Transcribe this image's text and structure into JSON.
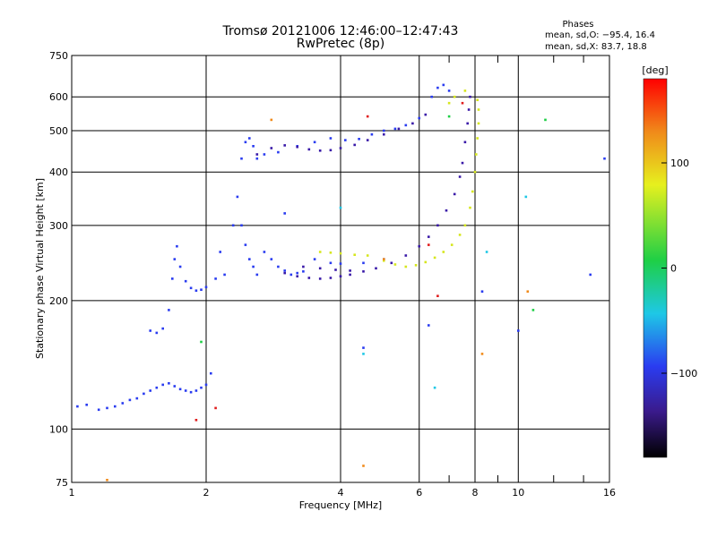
{
  "chart_data": {
    "type": "scatter",
    "title": "Tromsø 20121006 12:46:00–12:47:43",
    "subtitle": "RwPretec (8p)",
    "xlabel": "Frequency [MHz]",
    "ylabel": "Stationary phase Virtual Height [km]",
    "xscale": "log",
    "yscale": "log",
    "xlim": [
      1,
      16
    ],
    "ylim": [
      75,
      750
    ],
    "x_ticks": [
      1,
      2,
      4,
      6,
      8,
      10,
      16
    ],
    "x_tick_labels": [
      "1",
      "2",
      "4",
      "6",
      "8",
      "10",
      "16"
    ],
    "y_ticks": [
      75,
      100,
      200,
      300,
      400,
      500,
      600,
      750
    ],
    "y_tick_labels": [
      "75",
      "100",
      "200",
      "300",
      "400",
      "500",
      "600",
      "750"
    ],
    "grid": true,
    "phase_info": {
      "heading": "Phases",
      "line_o": "mean, sd,O: −95.4, 16.4",
      "line_x": "mean, sd,X: 83.7, 18.8"
    },
    "colorbar": {
      "label": "[deg]",
      "range": [
        -180,
        180
      ],
      "ticks": [
        100,
        0,
        -100
      ],
      "tick_labels": [
        "100",
        "0",
        "−100"
      ]
    },
    "series": [
      {
        "color": "#2a3cf0",
        "points": [
          [
            1.03,
            113
          ],
          [
            1.08,
            114
          ],
          [
            1.15,
            111
          ],
          [
            1.2,
            112
          ],
          [
            1.25,
            113
          ],
          [
            1.3,
            115
          ],
          [
            1.35,
            117
          ],
          [
            1.4,
            118
          ],
          [
            1.45,
            121
          ],
          [
            1.5,
            123
          ],
          [
            1.55,
            125
          ],
          [
            1.6,
            127
          ],
          [
            1.65,
            128
          ],
          [
            1.7,
            126
          ],
          [
            1.75,
            124
          ],
          [
            1.8,
            123
          ],
          [
            1.85,
            122
          ],
          [
            1.9,
            123
          ],
          [
            1.95,
            125
          ],
          [
            2.0,
            127
          ],
          [
            2.05,
            135
          ],
          [
            1.5,
            170
          ],
          [
            1.55,
            168
          ],
          [
            1.6,
            172
          ],
          [
            1.65,
            190
          ],
          [
            1.68,
            225
          ],
          [
            1.7,
            250
          ],
          [
            1.72,
            268
          ],
          [
            1.75,
            240
          ],
          [
            1.8,
            222
          ],
          [
            1.85,
            214
          ],
          [
            1.9,
            211
          ],
          [
            1.95,
            212
          ],
          [
            2.0,
            215
          ],
          [
            2.1,
            225
          ],
          [
            2.15,
            260
          ],
          [
            2.2,
            230
          ],
          [
            2.3,
            300
          ],
          [
            2.35,
            350
          ],
          [
            2.4,
            430
          ],
          [
            2.45,
            470
          ],
          [
            2.5,
            480
          ],
          [
            2.55,
            460
          ],
          [
            2.6,
            430
          ],
          [
            2.4,
            300
          ],
          [
            2.45,
            270
          ],
          [
            2.5,
            250
          ],
          [
            2.55,
            240
          ],
          [
            2.6,
            230
          ],
          [
            2.7,
            260
          ],
          [
            2.8,
            250
          ],
          [
            2.9,
            240
          ],
          [
            3.0,
            235
          ],
          [
            3.1,
            230
          ],
          [
            3.2,
            232
          ],
          [
            3.3,
            234
          ],
          [
            2.7,
            440
          ],
          [
            2.9,
            445
          ],
          [
            3.2,
            460
          ],
          [
            3.5,
            470
          ],
          [
            3.8,
            480
          ],
          [
            4.1,
            475
          ],
          [
            4.4,
            478
          ],
          [
            4.7,
            490
          ],
          [
            5.0,
            500
          ],
          [
            5.3,
            505
          ],
          [
            5.6,
            515
          ],
          [
            6.0,
            535
          ],
          [
            6.4,
            600
          ],
          [
            6.6,
            630
          ],
          [
            6.8,
            640
          ],
          [
            7.0,
            620
          ],
          [
            3.0,
            320
          ],
          [
            3.5,
            250
          ],
          [
            3.8,
            245
          ],
          [
            4.0,
            244
          ],
          [
            4.5,
            245
          ],
          [
            5.0,
            250
          ]
        ]
      },
      {
        "color": "#3a1aa8",
        "points": [
          [
            2.6,
            440
          ],
          [
            2.8,
            455
          ],
          [
            3.0,
            462
          ],
          [
            3.2,
            458
          ],
          [
            3.4,
            452
          ],
          [
            3.6,
            449
          ],
          [
            3.8,
            450
          ],
          [
            4.0,
            455
          ],
          [
            4.3,
            463
          ],
          [
            4.6,
            475
          ],
          [
            5.0,
            490
          ],
          [
            5.4,
            505
          ],
          [
            5.8,
            520
          ],
          [
            6.2,
            545
          ],
          [
            3.0,
            232
          ],
          [
            3.2,
            228
          ],
          [
            3.4,
            226
          ],
          [
            3.6,
            225
          ],
          [
            3.8,
            226
          ],
          [
            4.0,
            228
          ],
          [
            4.2,
            230
          ],
          [
            4.5,
            234
          ],
          [
            4.8,
            238
          ],
          [
            5.2,
            245
          ],
          [
            5.6,
            255
          ],
          [
            6.0,
            268
          ],
          [
            6.3,
            282
          ],
          [
            6.6,
            300
          ],
          [
            6.9,
            325
          ],
          [
            7.2,
            355
          ],
          [
            7.4,
            390
          ],
          [
            7.5,
            420
          ],
          [
            7.6,
            470
          ],
          [
            7.7,
            520
          ],
          [
            7.75,
            560
          ],
          [
            7.8,
            600
          ],
          [
            3.3,
            240
          ],
          [
            3.6,
            238
          ],
          [
            3.9,
            236
          ],
          [
            4.2,
            235
          ]
        ]
      },
      {
        "color": "#d6e61e",
        "points": [
          [
            3.6,
            260
          ],
          [
            3.8,
            259
          ],
          [
            4.0,
            258
          ],
          [
            4.3,
            256
          ],
          [
            4.6,
            255
          ],
          [
            5.0,
            248
          ],
          [
            5.3,
            243
          ],
          [
            5.6,
            240
          ],
          [
            5.9,
            242
          ],
          [
            6.2,
            246
          ],
          [
            6.5,
            252
          ],
          [
            6.8,
            260
          ],
          [
            7.1,
            270
          ],
          [
            7.4,
            285
          ],
          [
            7.6,
            300
          ],
          [
            7.8,
            330
          ],
          [
            7.9,
            360
          ],
          [
            8.0,
            400
          ],
          [
            8.05,
            440
          ],
          [
            8.1,
            480
          ],
          [
            8.15,
            520
          ],
          [
            8.15,
            560
          ],
          [
            8.1,
            590
          ],
          [
            7.6,
            620
          ],
          [
            7.2,
            600
          ],
          [
            7.0,
            580
          ]
        ]
      },
      {
        "color": "#e01e1e",
        "points": [
          [
            1.9,
            105
          ],
          [
            2.1,
            112
          ],
          [
            4.6,
            540
          ],
          [
            6.3,
            270
          ],
          [
            6.6,
            205
          ],
          [
            7.5,
            580
          ]
        ]
      },
      {
        "color": "#f08a1a",
        "points": [
          [
            2.8,
            530
          ],
          [
            5.0,
            250
          ],
          [
            8.3,
            150
          ],
          [
            10.5,
            210
          ],
          [
            4.5,
            82
          ],
          [
            1.2,
            76
          ]
        ]
      },
      {
        "color": "#1ecf46",
        "points": [
          [
            1.95,
            160
          ],
          [
            11.5,
            530
          ],
          [
            10.8,
            190
          ],
          [
            7.0,
            540
          ]
        ]
      },
      {
        "color": "#1ec8e6",
        "points": [
          [
            4.0,
            330
          ],
          [
            4.5,
            150
          ],
          [
            6.5,
            125
          ],
          [
            8.5,
            260
          ],
          [
            10.4,
            350
          ]
        ]
      },
      {
        "color": "#2a3cf0",
        "points": [
          [
            14.5,
            230
          ],
          [
            15.6,
            430
          ],
          [
            10.0,
            170
          ],
          [
            8.3,
            210
          ],
          [
            4.5,
            155
          ],
          [
            6.3,
            175
          ]
        ]
      }
    ]
  }
}
